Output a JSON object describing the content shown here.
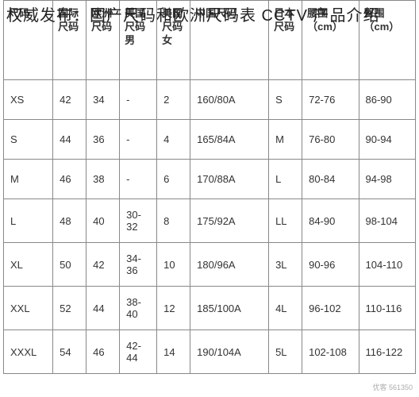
{
  "title": "权威发布：国产尺码和欧洲尺码表 CCTV 产品介绍",
  "table": {
    "headers": [
      "尺码",
      "国际尺码",
      "欧洲尺码",
      "美国尺码男",
      "美国尺码女",
      "中国尺码",
      "日本尺码",
      "腰围（cm）",
      "臀围（cm）"
    ],
    "rows": [
      [
        "XS",
        "42",
        "34",
        "-",
        "2",
        "160/80A",
        "S",
        "72-76",
        "86-90"
      ],
      [
        "S",
        "44",
        "36",
        "-",
        "4",
        "165/84A",
        "M",
        "76-80",
        "90-94"
      ],
      [
        "M",
        "46",
        "38",
        "-",
        "6",
        "170/88A",
        "L",
        "80-84",
        "94-98"
      ],
      [
        "L",
        "48",
        "40",
        "30-32",
        "8",
        "175/92A",
        "LL",
        "84-90",
        "98-104"
      ],
      [
        "XL",
        "50",
        "42",
        "34-36",
        "10",
        "180/96A",
        "3L",
        "90-96",
        "104-110"
      ],
      [
        "XXL",
        "52",
        "44",
        "38-40",
        "12",
        "185/100A",
        "4L",
        "96-102",
        "110-116"
      ],
      [
        "XXXL",
        "54",
        "46",
        "42-44",
        "14",
        "190/104A",
        "5L",
        "102-108",
        "116-122"
      ]
    ],
    "col_widths": [
      "46px",
      "34px",
      "34px",
      "38px",
      "34px",
      "80px",
      "34px",
      "56px",
      "56px"
    ]
  },
  "watermark": "优客 561350"
}
